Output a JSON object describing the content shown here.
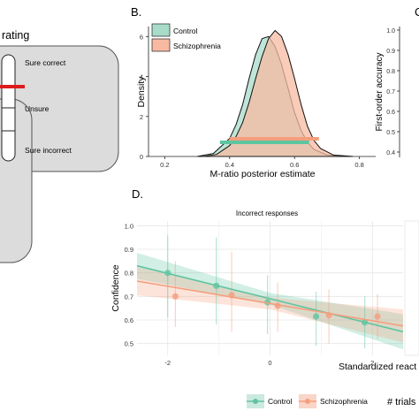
{
  "panel_a": {
    "title_fragment": "rating",
    "scale_labels": [
      "Sure correct",
      "Unsure",
      "Sure incorrect"
    ],
    "colors": {
      "box": "#dcdcdc",
      "marker": "#dd1c1c"
    }
  },
  "chart_data": [
    {
      "id": "B",
      "panel_label": "B.",
      "type": "area",
      "xlabel": "M-ratio posterior estimate",
      "ylabel": "Density",
      "xlim": [
        0.15,
        0.85
      ],
      "ylim": [
        0,
        6.5
      ],
      "x_ticks": [
        "0.2",
        "0.4",
        "0.6",
        "0.8"
      ],
      "y_ticks": [
        "0",
        "2",
        "4",
        "6"
      ],
      "legend_position": "top-left",
      "series": [
        {
          "name": "Control",
          "color": "#a8dcc9",
          "peak": 6.05,
          "mode": 0.505,
          "hdi": [
            0.37,
            0.645
          ],
          "x": [
            0.3,
            0.35,
            0.4,
            0.42,
            0.44,
            0.46,
            0.48,
            0.5,
            0.52,
            0.54,
            0.56,
            0.58,
            0.6,
            0.62,
            0.64,
            0.66,
            0.7,
            0.75
          ],
          "y": [
            0,
            0.15,
            0.9,
            1.6,
            2.6,
            3.9,
            5.1,
            5.9,
            6.0,
            5.5,
            4.6,
            3.4,
            2.2,
            1.3,
            0.7,
            0.35,
            0.08,
            0
          ]
        },
        {
          "name": "Schizophrenia",
          "color": "#f7b9a2",
          "peak": 6.3,
          "mode": 0.535,
          "hdi": [
            0.4,
            0.675
          ],
          "x": [
            0.32,
            0.36,
            0.4,
            0.42,
            0.44,
            0.46,
            0.48,
            0.5,
            0.52,
            0.54,
            0.56,
            0.58,
            0.6,
            0.62,
            0.64,
            0.66,
            0.68,
            0.72,
            0.78
          ],
          "y": [
            0,
            0.1,
            0.55,
            1.0,
            1.7,
            2.7,
            3.9,
            5.0,
            5.9,
            6.3,
            6.0,
            5.1,
            3.9,
            2.6,
            1.5,
            0.8,
            0.4,
            0.07,
            0
          ]
        }
      ]
    },
    {
      "id": "C",
      "panel_label": "C",
      "type": "scatter",
      "ylabel": "First-order accuracy",
      "y_ticks": [
        "1.0",
        "0.9",
        "0.8",
        "0.7",
        "0.6",
        "0.5",
        "0.4"
      ]
    },
    {
      "id": "D",
      "panel_label": "D.",
      "type": "line",
      "title": "Incorrect responses",
      "xlabel": "Standardized react",
      "ylabel": "Confidence",
      "xlim": [
        -2.6,
        2.6
      ],
      "ylim": [
        0.45,
        1.02
      ],
      "x_ticks": [
        "-2",
        "0",
        "2"
      ],
      "y_ticks": [
        "1.0",
        "0.9",
        "0.8",
        "0.7",
        "0.6",
        "0.5"
      ],
      "grid": true,
      "series": [
        {
          "name": "Control",
          "color": "#5fc4a0",
          "line": [
            [
              -2.6,
              0.83
            ],
            [
              2.6,
              0.55
            ]
          ],
          "band": [
            [
              -2.6,
              0.885,
              0.775
            ],
            [
              0,
              0.715,
              0.665
            ],
            [
              2.6,
              0.625,
              0.475
            ]
          ],
          "points": [
            [
              -2.0,
              0.8,
              0.96,
              0.61
            ],
            [
              -1.05,
              0.745,
              0.95,
              0.58
            ],
            [
              -0.05,
              0.675,
              0.79,
              0.54
            ],
            [
              0.9,
              0.615,
              0.72,
              0.49
            ],
            [
              1.85,
              0.59,
              0.7,
              0.48
            ]
          ]
        },
        {
          "name": "Schizophrenia",
          "color": "#f59e7d",
          "line": [
            [
              -2.6,
              0.765
            ],
            [
              2.6,
              0.575
            ]
          ],
          "band": [
            [
              -2.6,
              0.825,
              0.705
            ],
            [
              0,
              0.695,
              0.645
            ],
            [
              2.6,
              0.645,
              0.505
            ]
          ],
          "points": [
            [
              -1.85,
              0.7,
              0.85,
              0.57
            ],
            [
              -0.75,
              0.705,
              0.89,
              0.55
            ],
            [
              0.15,
              0.66,
              0.76,
              0.55
            ],
            [
              1.15,
              0.62,
              0.73,
              0.5
            ],
            [
              2.1,
              0.615,
              0.71,
              0.52
            ]
          ]
        }
      ]
    }
  ],
  "legend_bottom": {
    "items": [
      "Control",
      "Schizophrenia"
    ],
    "trials_label": "# trials"
  }
}
